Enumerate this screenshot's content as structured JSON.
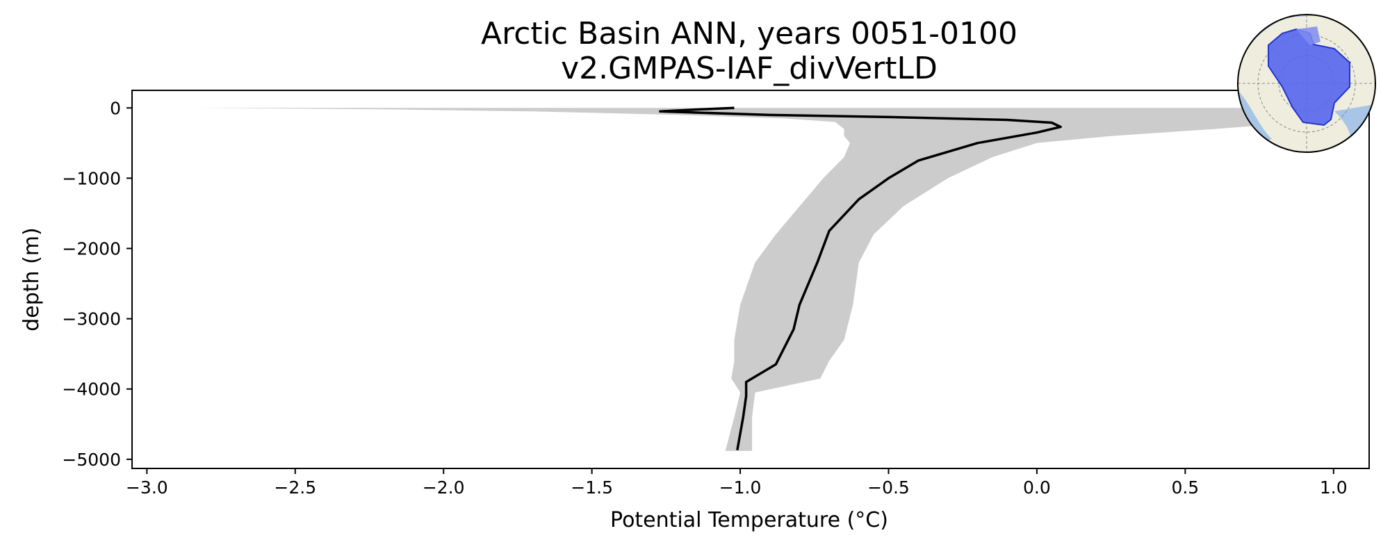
{
  "chart_data": {
    "type": "line",
    "title": "Arctic Basin ANN, years 0051-0100",
    "subtitle": "v2.GMPAS-IAF_divVertLD",
    "xlabel": "Potential Temperature (°C)",
    "ylabel": "depth (m)",
    "xlim": [
      -3.05,
      1.12
    ],
    "ylim": [
      -5130,
      250
    ],
    "xticks": [
      -3.0,
      -2.5,
      -2.0,
      -1.5,
      -1.0,
      -0.5,
      0.0,
      0.5,
      1.0
    ],
    "xtick_labels": [
      "−3.0",
      "−2.5",
      "−2.0",
      "−1.5",
      "−1.0",
      "−0.5",
      "0.0",
      "0.5",
      "1.0"
    ],
    "yticks": [
      0,
      -1000,
      -2000,
      -3000,
      -4000,
      -5000
    ],
    "ytick_labels": [
      "0",
      "−1000",
      "−2000",
      "−3000",
      "−4000",
      "−5000"
    ],
    "grid": false,
    "series": [
      {
        "style": "line",
        "color": "#000000",
        "x": [
          -1.02,
          -1.13,
          -1.27,
          -0.9,
          -0.5,
          -0.1,
          0.05,
          0.08,
          0.0,
          -0.2,
          -0.4,
          -0.5,
          -0.6,
          -0.7,
          -0.74,
          -0.8,
          -0.82,
          -0.88,
          -0.98,
          -0.98,
          -0.99,
          -1.01
        ],
        "y": [
          0,
          -20,
          -50,
          -100,
          -130,
          -170,
          -210,
          -270,
          -350,
          -500,
          -750,
          -1000,
          -1300,
          -1750,
          -2200,
          -2800,
          -3150,
          -3650,
          -3900,
          -4100,
          -4400,
          -4870
        ]
      },
      {
        "style": "band",
        "color": "#cccccc",
        "y": [
          0,
          -20,
          -50,
          -100,
          -150,
          -200,
          -300,
          -400,
          -500,
          -700,
          -1000,
          -1400,
          -1800,
          -2200,
          -2800,
          -3300,
          -3600,
          -3850,
          -4050,
          -4400,
          -4880
        ],
        "lower": [
          -2.83,
          -2.2,
          -1.7,
          -1.2,
          -0.85,
          -0.68,
          -0.65,
          -0.65,
          -0.63,
          -0.65,
          -0.72,
          -0.8,
          -0.88,
          -0.95,
          -1.0,
          -1.02,
          -1.02,
          -1.03,
          -1.0,
          -1.02,
          -1.05
        ],
        "upper": [
          1.0,
          1.0,
          1.0,
          1.0,
          0.95,
          0.9,
          0.6,
          0.25,
          0.0,
          -0.15,
          -0.3,
          -0.45,
          -0.55,
          -0.6,
          -0.62,
          -0.65,
          -0.7,
          -0.73,
          -0.95,
          -0.96,
          -0.96
        ]
      }
    ]
  }
}
